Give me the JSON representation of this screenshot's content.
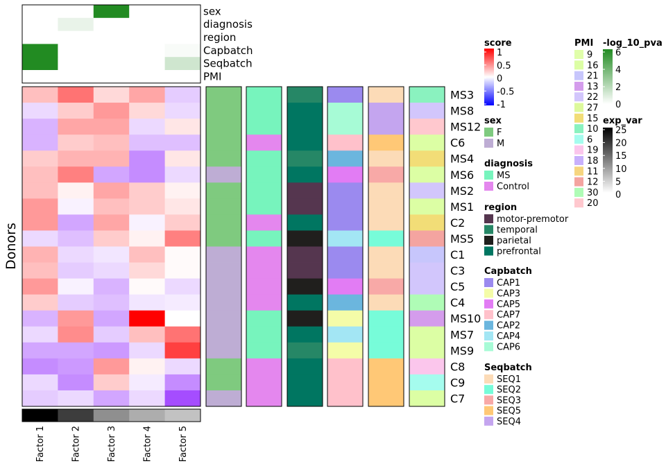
{
  "chart_data": {
    "type": "heatmap",
    "y_axis_label": "Donors",
    "factors": [
      "Factor 1",
      "Factor 2",
      "Factor 3",
      "Factor 4",
      "Factor 5"
    ],
    "donors": [
      "MS3",
      "MS8",
      "MS12",
      "C6",
      "MS4",
      "MS6",
      "MS2",
      "MS1",
      "C2",
      "MS5",
      "C1",
      "C3",
      "C5",
      "C4",
      "MS10",
      "MS7",
      "MS9",
      "C8",
      "C9",
      "C7"
    ],
    "scores": [
      [
        0.25,
        0.55,
        0.15,
        0.35,
        -0.2
      ],
      [
        -0.15,
        0.2,
        0.4,
        0.15,
        -0.15
      ],
      [
        -0.3,
        0.35,
        0.35,
        -0.15,
        0.1
      ],
      [
        -0.3,
        0.2,
        0.25,
        -0.25,
        -0.25
      ],
      [
        0.2,
        0.3,
        0.3,
        -0.45,
        0.1
      ],
      [
        0.25,
        0.5,
        -0.35,
        -0.45,
        -0.15
      ],
      [
        0.25,
        0.05,
        0.35,
        0.2,
        0.05
      ],
      [
        0.4,
        -0.05,
        0.25,
        0.2,
        0.1
      ],
      [
        0.4,
        -0.35,
        0.35,
        -0.05,
        0.2
      ],
      [
        -0.15,
        -0.25,
        0.2,
        0.05,
        0.5
      ],
      [
        0.3,
        -0.15,
        -0.1,
        0.25,
        0.02
      ],
      [
        0.25,
        -0.2,
        -0.15,
        0.15,
        0.02
      ],
      [
        0.4,
        -0.05,
        -0.3,
        0.02,
        -0.15
      ],
      [
        0.2,
        -0.2,
        -0.25,
        -0.1,
        -0.08
      ],
      [
        -0.3,
        0.4,
        -0.35,
        1.0,
        0.0
      ],
      [
        -0.15,
        0.45,
        -0.2,
        0.25,
        0.55
      ],
      [
        -0.35,
        -0.35,
        -0.4,
        -0.15,
        0.75
      ],
      [
        -0.45,
        -0.4,
        0.4,
        0.05,
        -0.15
      ],
      [
        -0.15,
        -0.45,
        0.2,
        -0.08,
        -0.45
      ],
      [
        -0.2,
        -0.15,
        -0.35,
        -0.15,
        -0.7
      ]
    ],
    "exp_var": [
      25,
      19,
      11,
      8,
      6
    ],
    "top_pvalue_rows": [
      "sex",
      "diagnosis",
      "region",
      "Capbatch",
      "Seqbatch",
      "PMI"
    ],
    "top_pvalue": [
      [
        0,
        0,
        6,
        0,
        0
      ],
      [
        0,
        0.6,
        0,
        0,
        0
      ],
      [
        0,
        0,
        0,
        0,
        0
      ],
      [
        6,
        0,
        0,
        0,
        0.2
      ],
      [
        6,
        0,
        0,
        0,
        1.3
      ],
      [
        0,
        0,
        0,
        0,
        0
      ]
    ],
    "metadata_columns": [
      "sex",
      "diagnosis",
      "region",
      "Capbatch",
      "Seqbatch",
      "PMI"
    ],
    "metadata": {
      "sex": [
        "F",
        "F",
        "F",
        "F",
        "F",
        "M",
        "F",
        "F",
        "F",
        "F",
        "M",
        "M",
        "M",
        "M",
        "M",
        "M",
        "M",
        "F",
        "F",
        "M"
      ],
      "diagnosis": [
        "MS",
        "MS",
        "MS",
        "Control",
        "MS",
        "MS",
        "MS",
        "MS",
        "Control",
        "MS",
        "Control",
        "Control",
        "Control",
        "Control",
        "MS",
        "MS",
        "MS",
        "Control",
        "Control",
        "Control"
      ],
      "region": [
        "temporal",
        "prefrontal",
        "prefrontal",
        "prefrontal",
        "temporal",
        "prefrontal",
        "motor-premotor",
        "motor-premotor",
        "prefrontal",
        "parietal",
        "motor-premotor",
        "motor-premotor",
        "parietal",
        "prefrontal",
        "parietal",
        "prefrontal",
        "temporal",
        "prefrontal",
        "prefrontal",
        "prefrontal"
      ],
      "Capbatch": [
        "CAP1",
        "CAP6",
        "CAP6",
        "CAP7",
        "CAP2",
        "CAP5",
        "CAP1",
        "CAP1",
        "CAP1",
        "CAP4",
        "CAP1",
        "CAP1",
        "CAP5",
        "CAP2",
        "CAP3",
        "CAP4",
        "CAP3",
        "CAP7",
        "CAP7",
        "CAP7"
      ],
      "Seqbatch": [
        "SEQ1",
        "SEQ4",
        "SEQ4",
        "SEQ5",
        "SEQ1",
        "SEQ3",
        "SEQ1",
        "SEQ1",
        "SEQ1",
        "SEQ2",
        "SEQ1",
        "SEQ1",
        "SEQ3",
        "SEQ1",
        "SEQ2",
        "SEQ2",
        "SEQ2",
        "SEQ5",
        "SEQ5",
        "SEQ5"
      ],
      "PMI": [
        "10",
        "22",
        "20",
        "16",
        "15",
        "16",
        "22",
        "16",
        "15",
        "12",
        "21",
        "22",
        "22",
        "30",
        "13",
        "16",
        "16",
        "19",
        "6",
        "16"
      ]
    },
    "legends": [
      {
        "title": "score",
        "kind": "gradient",
        "ticks": [
          "1",
          "0.5",
          "0",
          "-0.5",
          "-1"
        ]
      },
      {
        "title": "sex",
        "kind": "discrete",
        "items": [
          {
            "label": "F",
            "color": "#7FCA7F"
          },
          {
            "label": "M",
            "color": "#BEADD4"
          }
        ]
      },
      {
        "title": "diagnosis",
        "kind": "discrete",
        "items": [
          {
            "label": "MS",
            "color": "#77F4BD"
          },
          {
            "label": "Control",
            "color": "#E487EE"
          }
        ]
      },
      {
        "title": "region",
        "kind": "discrete",
        "items": [
          {
            "label": "motor-premotor",
            "color": "#55364F"
          },
          {
            "label": "temporal",
            "color": "#268766"
          },
          {
            "label": "parietal",
            "color": "#201F1D"
          },
          {
            "label": "prefrontal",
            "color": "#007661"
          }
        ]
      },
      {
        "title": "Capbatch",
        "kind": "discrete",
        "items": [
          {
            "label": "CAP1",
            "color": "#9B8AEF"
          },
          {
            "label": "CAP3",
            "color": "#F4FCA8"
          },
          {
            "label": "CAP5",
            "color": "#E27CF4"
          },
          {
            "label": "CAP7",
            "color": "#FFC1CB"
          },
          {
            "label": "CAP2",
            "color": "#6BB6DE"
          },
          {
            "label": "CAP4",
            "color": "#A3E6F4"
          },
          {
            "label": "CAP6",
            "color": "#A7FBD6"
          }
        ]
      },
      {
        "title": "Seqbatch",
        "kind": "discrete",
        "items": [
          {
            "label": "SEQ1",
            "color": "#FCDBB7"
          },
          {
            "label": "SEQ2",
            "color": "#77FCD9"
          },
          {
            "label": "SEQ3",
            "color": "#F8A9A7"
          },
          {
            "label": "SEQ5",
            "color": "#FFC876"
          },
          {
            "label": "SEQ4",
            "color": "#C4A5EF"
          }
        ]
      },
      {
        "title": "PMI",
        "kind": "discrete",
        "items": [
          {
            "label": "9",
            "color": "#E0FEAA"
          },
          {
            "label": "16",
            "color": "#DCFEA4"
          },
          {
            "label": "21",
            "color": "#C7C6FC"
          },
          {
            "label": "13",
            "color": "#D49CEC"
          },
          {
            "label": "22",
            "color": "#D2C6FC"
          },
          {
            "label": "27",
            "color": "#DDF99C"
          },
          {
            "label": "15",
            "color": "#F2DD77"
          },
          {
            "label": "10",
            "color": "#8AF2BF"
          },
          {
            "label": "6",
            "color": "#A5FCEE"
          },
          {
            "label": "19",
            "color": "#FBC6EC"
          },
          {
            "label": "18",
            "color": "#C8B0FC"
          },
          {
            "label": "11",
            "color": "#F6D57F"
          },
          {
            "label": "12",
            "color": "#F4A4A0"
          },
          {
            "label": "30",
            "color": "#AFFCB6"
          },
          {
            "label": "20",
            "color": "#FFC8CE"
          }
        ]
      },
      {
        "title": "-log_10_pva",
        "kind": "gradient",
        "ticks": [
          "6",
          "4",
          "2",
          "0"
        ]
      },
      {
        "title": "exp_var",
        "kind": "gradient",
        "ticks": [
          "25",
          "20",
          "15",
          "10",
          "5",
          "0"
        ]
      }
    ]
  }
}
